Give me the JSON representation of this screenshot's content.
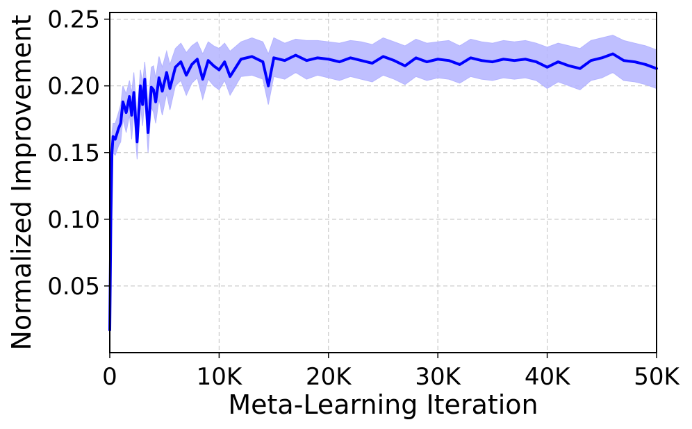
{
  "chart_data": {
    "type": "line",
    "title": "",
    "xlabel": "Meta-Learning Iteration",
    "ylabel": "Normalized Improvement",
    "xlim": [
      0,
      50000
    ],
    "ylim": [
      0.0,
      0.255
    ],
    "grid": true,
    "legend": "none",
    "x_ticks": [
      {
        "value": 0,
        "label": "0"
      },
      {
        "value": 10000,
        "label": "10K"
      },
      {
        "value": 20000,
        "label": "20K"
      },
      {
        "value": 30000,
        "label": "30K"
      },
      {
        "value": 40000,
        "label": "40K"
      },
      {
        "value": 50000,
        "label": "50K"
      }
    ],
    "y_ticks": [
      {
        "value": 0.05,
        "label": "0.05"
      },
      {
        "value": 0.1,
        "label": "0.10"
      },
      {
        "value": 0.15,
        "label": "0.15"
      },
      {
        "value": 0.2,
        "label": "0.20"
      },
      {
        "value": 0.25,
        "label": "0.25"
      }
    ],
    "series": [
      {
        "color": "#0000ff",
        "band_color": "#b4b4ff",
        "x": [
          0,
          100,
          200,
          300,
          500,
          800,
          1000,
          1200,
          1500,
          1800,
          2000,
          2200,
          2500,
          2800,
          3000,
          3200,
          3500,
          3800,
          4000,
          4200,
          4500,
          4800,
          5000,
          5200,
          5500,
          6000,
          6500,
          7000,
          7500,
          8000,
          8500,
          9000,
          9500,
          10000,
          10500,
          11000,
          12000,
          13000,
          14000,
          14500,
          15000,
          16000,
          17000,
          18000,
          19000,
          20000,
          21000,
          22000,
          23000,
          24000,
          25000,
          26000,
          27000,
          28000,
          29000,
          30000,
          31000,
          32000,
          33000,
          34000,
          35000,
          36000,
          37000,
          38000,
          39000,
          40000,
          41000,
          42000,
          43000,
          44000,
          45000,
          46000,
          47000,
          48000,
          49000,
          50000
        ],
        "mean": [
          0.017,
          0.1,
          0.15,
          0.162,
          0.16,
          0.168,
          0.172,
          0.188,
          0.18,
          0.192,
          0.178,
          0.195,
          0.158,
          0.2,
          0.186,
          0.205,
          0.165,
          0.199,
          0.197,
          0.188,
          0.206,
          0.196,
          0.203,
          0.21,
          0.198,
          0.214,
          0.218,
          0.208,
          0.216,
          0.22,
          0.205,
          0.219,
          0.215,
          0.212,
          0.218,
          0.207,
          0.22,
          0.222,
          0.218,
          0.2,
          0.221,
          0.219,
          0.223,
          0.219,
          0.221,
          0.22,
          0.218,
          0.221,
          0.219,
          0.217,
          0.222,
          0.219,
          0.215,
          0.221,
          0.218,
          0.22,
          0.219,
          0.216,
          0.221,
          0.219,
          0.218,
          0.22,
          0.219,
          0.22,
          0.218,
          0.214,
          0.218,
          0.215,
          0.213,
          0.219,
          0.221,
          0.224,
          0.219,
          0.218,
          0.216,
          0.213
        ],
        "upper": [
          0.025,
          0.115,
          0.165,
          0.172,
          0.172,
          0.18,
          0.186,
          0.2,
          0.194,
          0.204,
          0.195,
          0.21,
          0.178,
          0.212,
          0.202,
          0.218,
          0.186,
          0.214,
          0.215,
          0.206,
          0.222,
          0.214,
          0.22,
          0.226,
          0.216,
          0.228,
          0.232,
          0.225,
          0.23,
          0.233,
          0.224,
          0.233,
          0.23,
          0.228,
          0.232,
          0.226,
          0.233,
          0.236,
          0.233,
          0.224,
          0.236,
          0.232,
          0.235,
          0.234,
          0.234,
          0.233,
          0.232,
          0.234,
          0.233,
          0.231,
          0.236,
          0.233,
          0.23,
          0.235,
          0.232,
          0.233,
          0.234,
          0.23,
          0.235,
          0.233,
          0.232,
          0.234,
          0.233,
          0.234,
          0.232,
          0.229,
          0.232,
          0.23,
          0.228,
          0.234,
          0.236,
          0.238,
          0.234,
          0.232,
          0.23,
          0.227
        ],
        "lower": [
          0.012,
          0.085,
          0.138,
          0.15,
          0.148,
          0.155,
          0.158,
          0.175,
          0.165,
          0.178,
          0.16,
          0.18,
          0.145,
          0.186,
          0.17,
          0.19,
          0.15,
          0.184,
          0.18,
          0.172,
          0.19,
          0.178,
          0.186,
          0.194,
          0.182,
          0.2,
          0.204,
          0.193,
          0.202,
          0.206,
          0.19,
          0.205,
          0.2,
          0.197,
          0.204,
          0.193,
          0.207,
          0.208,
          0.205,
          0.186,
          0.207,
          0.205,
          0.21,
          0.205,
          0.208,
          0.206,
          0.204,
          0.207,
          0.205,
          0.203,
          0.208,
          0.205,
          0.201,
          0.207,
          0.204,
          0.206,
          0.205,
          0.202,
          0.207,
          0.205,
          0.204,
          0.206,
          0.205,
          0.206,
          0.204,
          0.198,
          0.203,
          0.2,
          0.197,
          0.204,
          0.206,
          0.21,
          0.204,
          0.203,
          0.201,
          0.198
        ]
      }
    ]
  }
}
